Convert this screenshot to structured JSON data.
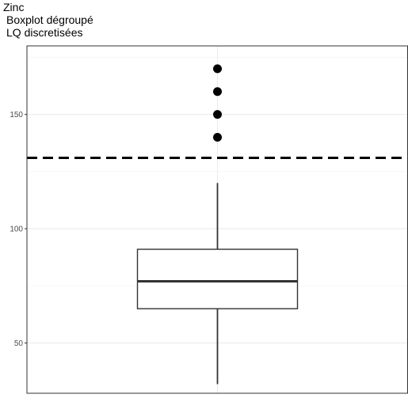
{
  "chart_data": {
    "type": "boxplot",
    "title": "Zinc",
    "subtitle_lines": [
      "Boxplot dégroupé",
      "LQ discretisées"
    ],
    "xlabel": "",
    "ylabel": "",
    "ylim": [
      28,
      180
    ],
    "yticks": [
      50,
      100,
      150
    ],
    "grid": true,
    "box": {
      "whisker_low": 32,
      "q1": 65,
      "median": 77,
      "q3": 91,
      "whisker_high": 120
    },
    "outliers": [
      140,
      150,
      160,
      170
    ],
    "reference_line": {
      "value": 131,
      "style": "dashed"
    }
  }
}
